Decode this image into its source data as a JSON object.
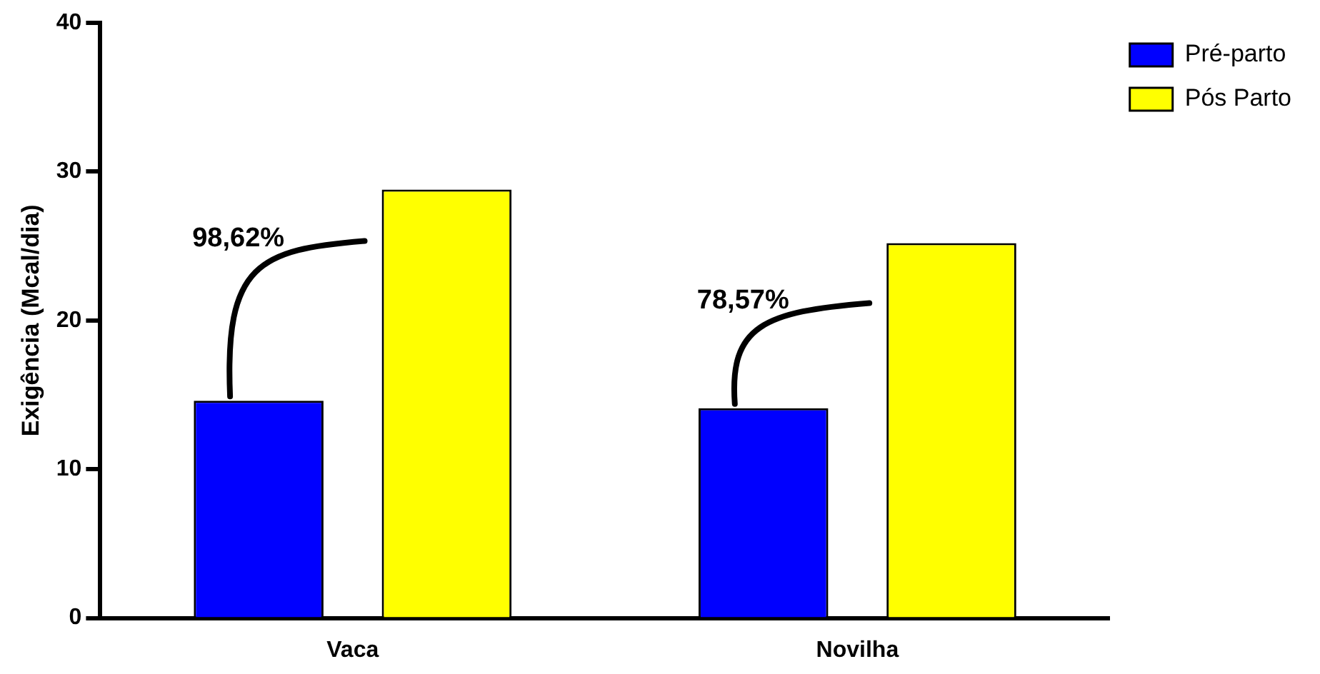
{
  "chart_data": {
    "type": "bar",
    "ylabel": "Exigência (Mcal/dia)",
    "categories": [
      "Vaca",
      "Novilha"
    ],
    "series": [
      {
        "name": "Pré-parto",
        "color": "#0000ff",
        "values": [
          14.6,
          14.1
        ]
      },
      {
        "name": "Pós Parto",
        "color": "#ffff00",
        "values": [
          28.8,
          25.2
        ]
      }
    ],
    "ylim": [
      0,
      40
    ],
    "yticks": [
      0,
      10,
      20,
      30,
      40
    ],
    "grid": false,
    "legend": "top right",
    "annotations": [
      "98,62%",
      "78,57%"
    ]
  }
}
